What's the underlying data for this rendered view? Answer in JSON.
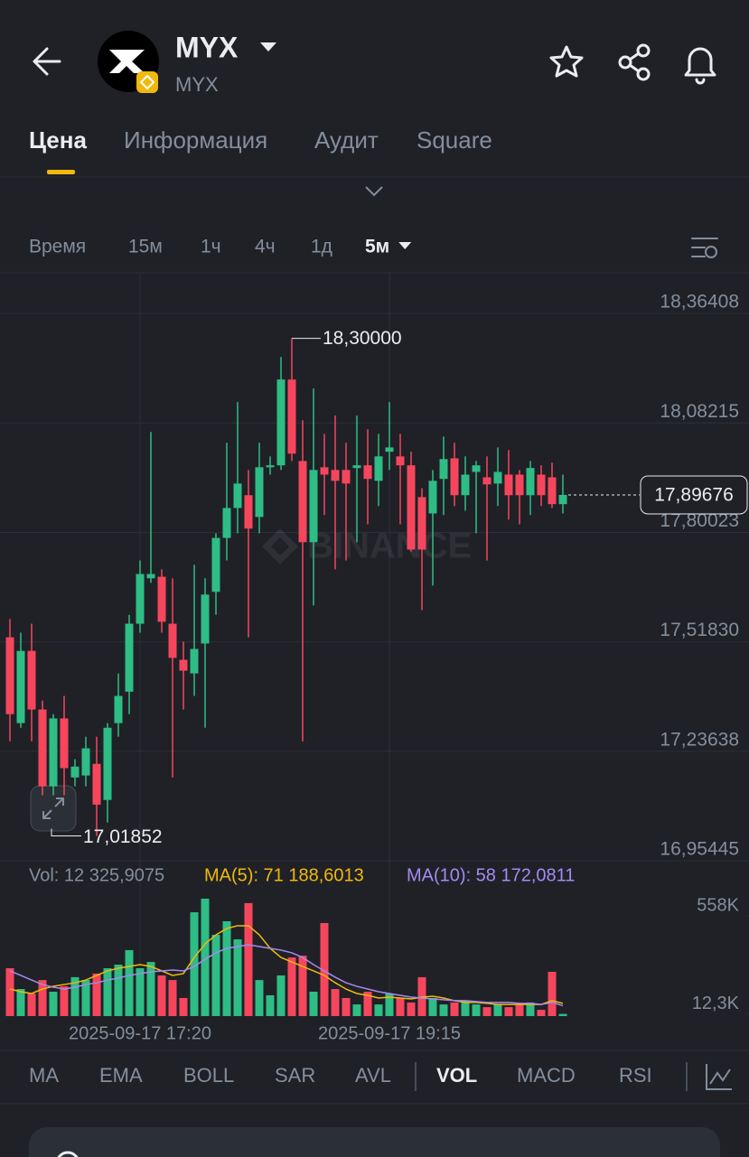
{
  "header": {
    "title": "MYX",
    "subtitle": "MYX"
  },
  "tabs": {
    "items": [
      "Цена",
      "Информация",
      "Аудит",
      "Square"
    ],
    "selected": 0
  },
  "timeframes": {
    "items": [
      "Время",
      "15м",
      "1ч",
      "4ч",
      "1д",
      "5м"
    ],
    "selected": 5
  },
  "indicators": {
    "items": [
      "MA",
      "EMA",
      "BOLL",
      "SAR",
      "AVL",
      "VOL",
      "MACD",
      "RSI"
    ],
    "selected": 5
  },
  "chart_data": {
    "type": "candlestick",
    "watermark": "BINANCE",
    "up_color": "#2ebd85",
    "down_color": "#f6465d",
    "grid": true,
    "open": [
      17.53,
      17.309,
      17.495,
      17.344,
      17.146,
      17.321,
      17.169,
      17.174,
      17.204,
      17.111,
      17.309,
      17.39,
      17.565,
      17.682,
      17.686,
      17.565,
      17.472,
      17.437,
      17.514,
      17.647,
      17.786,
      17.863,
      17.896,
      17.84,
      17.968,
      17.973,
      18.194,
      17.984,
      17.775,
      17.968,
      17.961,
      17.961,
      17.966,
      17.973,
      17.933,
      18.008,
      17.996,
      17.973,
      17.891,
      17.849,
      17.938,
      17.991,
      17.896,
      17.956,
      17.942,
      17.926,
      17.949,
      17.949,
      17.896,
      17.949,
      17.942,
      17.873
    ],
    "close": [
      17.332,
      17.495,
      17.344,
      17.146,
      17.321,
      17.193,
      17.197,
      17.244,
      17.099,
      17.297,
      17.379,
      17.565,
      17.693,
      17.693,
      17.57,
      17.477,
      17.444,
      17.5,
      17.64,
      17.786,
      17.863,
      17.926,
      17.81,
      17.968,
      17.973,
      18.194,
      18.003,
      17.775,
      17.961,
      17.949,
      17.933,
      17.926,
      17.973,
      17.938,
      17.996,
      18.019,
      17.973,
      17.756,
      17.756,
      17.933,
      17.989,
      17.896,
      17.949,
      17.973,
      17.924,
      17.956,
      17.896,
      17.896,
      17.966,
      17.896,
      17.873,
      17.89676
    ],
    "high": [
      17.577,
      17.542,
      17.565,
      17.367,
      17.332,
      17.379,
      17.216,
      17.274,
      17.274,
      17.309,
      17.437,
      17.588,
      17.728,
      18.059,
      17.705,
      17.682,
      17.519,
      17.717,
      17.682,
      17.798,
      18.031,
      18.136,
      17.961,
      18.031,
      17.996,
      18.252,
      18.3,
      18.089,
      18.171,
      18.054,
      18.101,
      18.031,
      18.101,
      18.066,
      18.054,
      18.136,
      18.054,
      18.008,
      17.914,
      17.961,
      18.047,
      18.031,
      17.996,
      17.984,
      17.996,
      18.019,
      18.012,
      17.961,
      17.984,
      17.973,
      17.98,
      17.949
    ],
    "low": [
      17.262,
      17.297,
      17.262,
      17.123,
      17.123,
      17.123,
      17.146,
      17.146,
      17.01852,
      17.053,
      17.274,
      17.332,
      17.542,
      17.67,
      17.542,
      17.169,
      17.344,
      17.379,
      17.297,
      17.588,
      17.728,
      17.798,
      17.53,
      17.798,
      17.949,
      17.961,
      17.984,
      17.262,
      17.612,
      17.845,
      17.705,
      17.728,
      17.775,
      17.821,
      17.868,
      17.961,
      17.821,
      17.751,
      17.6,
      17.663,
      17.845,
      17.868,
      17.856,
      17.798,
      17.728,
      17.868,
      17.833,
      17.821,
      17.845,
      17.868,
      17.863,
      17.849
    ],
    "high_label": "18,30000",
    "low_label": "17,01852",
    "last_label": "17,89676",
    "ylim": [
      16.95445,
      18.4666
    ],
    "yticks": [
      {
        "value": 18.36408,
        "label": "18,36408"
      },
      {
        "value": 18.08215,
        "label": "18,08215"
      },
      {
        "value": 17.80023,
        "label": "17,80023"
      },
      {
        "value": 17.5183,
        "label": "17,51830"
      },
      {
        "value": 17.23638,
        "label": "17,23638"
      },
      {
        "value": 16.95445,
        "label": "16,95445"
      }
    ],
    "xticks": [
      {
        "value": 12,
        "label": "2025-09-17 17:20"
      },
      {
        "value": 35,
        "label": "2025-09-17 19:15"
      }
    ],
    "volume": {
      "label": "Vol: 12 325,9075",
      "values": [
        267000,
        151000,
        126000,
        201000,
        136000,
        166000,
        217000,
        201000,
        237000,
        267000,
        287000,
        368000,
        267000,
        302000,
        227000,
        201000,
        101000,
        579000,
        655000,
        453000,
        529000,
        428000,
        630000,
        201000,
        116000,
        227000,
        327000,
        337000,
        136000,
        519000,
        151000,
        101000,
        65000,
        136000,
        65000,
        126000,
        101000,
        76000,
        217000,
        101000,
        65000,
        76000,
        86000,
        65000,
        50000,
        65000,
        50000,
        65000,
        76000,
        35000,
        247000,
        12325.9075
      ],
      "ma5": {
        "label": "MA(5): 71 188,6013",
        "color": "#f0b90b",
        "values": [
          151000,
          136000,
          126000,
          151000,
          166000,
          176000,
          186000,
          201000,
          227000,
          252000,
          267000,
          277000,
          287000,
          277000,
          252000,
          227000,
          237000,
          327000,
          403000,
          453000,
          489000,
          504000,
          504000,
          453000,
          378000,
          327000,
          302000,
          277000,
          252000,
          227000,
          186000,
          151000,
          126000,
          116000,
          101000,
          106000,
          101000,
          96000,
          106000,
          111000,
          101000,
          86000,
          76000,
          76000,
          71000,
          65000,
          65000,
          65000,
          65000,
          65000,
          86000,
          71188.6013
        ]
      },
      "ma10": {
        "label": "MA(10): 58 172,0811",
        "color": "#a58af0",
        "values": [
          252000,
          227000,
          201000,
          176000,
          161000,
          151000,
          161000,
          176000,
          186000,
          201000,
          212000,
          227000,
          237000,
          247000,
          252000,
          257000,
          252000,
          277000,
          317000,
          353000,
          378000,
          388000,
          398000,
          388000,
          378000,
          368000,
          353000,
          327000,
          287000,
          252000,
          217000,
          186000,
          166000,
          151000,
          136000,
          126000,
          116000,
          106000,
          101000,
          96000,
          91000,
          86000,
          86000,
          81000,
          76000,
          76000,
          76000,
          71000,
          71000,
          65000,
          76000,
          58172.0811
        ]
      },
      "ylim": [
        0,
        680000
      ],
      "yticks": [
        {
          "value": 558000,
          "label": "558K"
        },
        {
          "value": 12300,
          "label": "12,3K"
        }
      ]
    }
  }
}
